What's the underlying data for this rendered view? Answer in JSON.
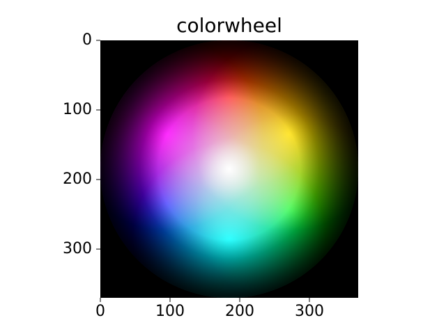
{
  "chart_data": {
    "type": "heatmap",
    "title": "colorwheel",
    "xlabel": "",
    "ylabel": "",
    "xlim": [
      0,
      370
    ],
    "ylim": [
      370,
      0
    ],
    "xticks": [
      0,
      100,
      200,
      300
    ],
    "yticks": [
      0,
      100,
      200,
      300
    ],
    "image": {
      "description_kind": "hsv-color-wheel",
      "center": [
        185,
        185
      ],
      "radius": 185,
      "background": "#000000",
      "hue_anchors": [
        {
          "name": "red",
          "color": "#ff0000",
          "x": 185,
          "y": 80
        },
        {
          "name": "yellow",
          "color": "#ffd700",
          "x": 270,
          "y": 135
        },
        {
          "name": "green",
          "color": "#00ff00",
          "x": 275,
          "y": 245
        },
        {
          "name": "cyan",
          "color": "#00ffff",
          "x": 185,
          "y": 285
        },
        {
          "name": "blue",
          "color": "#0000ff",
          "x": 95,
          "y": 235
        },
        {
          "name": "magenta",
          "color": "#ff00ff",
          "x": 95,
          "y": 135
        }
      ],
      "center_color": "#ffffff",
      "edge_color": "#000000"
    }
  }
}
